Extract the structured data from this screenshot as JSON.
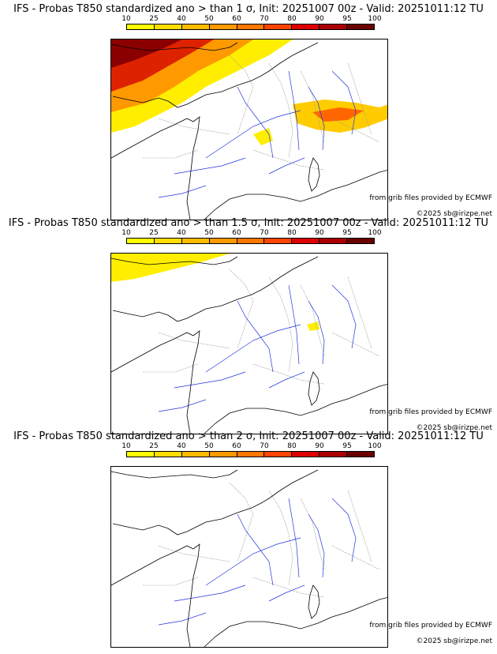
{
  "colorbar": {
    "ticks": [
      "10",
      "25",
      "40",
      "50",
      "60",
      "70",
      "80",
      "90",
      "95",
      "100"
    ],
    "colors": [
      "#ffff00",
      "#ffdd00",
      "#ffbb00",
      "#ff9900",
      "#ff7700",
      "#ff4400",
      "#dd0000",
      "#aa0000",
      "#6a0000"
    ]
  },
  "panels": [
    {
      "title": "IFS - Probas T850  standardized ano > than 1 σ, Init: 20251007 00z - Valid: 20251011:12 TU",
      "threshold_sigma": 1,
      "coverage": "strong",
      "grib_credit": "from grib files provided by ECMWF",
      "copyright": "©2025 sb@irizpe.net"
    },
    {
      "title": "IFS - Probas T850  standardized ano > than 1.5 σ, Init: 20251007 00z - Valid: 20251011:12 TU",
      "threshold_sigma": 1.5,
      "coverage": "weak",
      "grib_credit": "from grib files provided by ECMWF",
      "copyright": "©2025 sb@irizpe.net"
    },
    {
      "title": "IFS - Probas T850  standardized ano > than 2 σ, Init: 20251007 00z - Valid: 20251011:12 TU",
      "threshold_sigma": 2,
      "coverage": "none",
      "grib_credit": "from grib files provided by ECMWF",
      "copyright": "©2025 sb@irizpe.net"
    }
  ]
}
